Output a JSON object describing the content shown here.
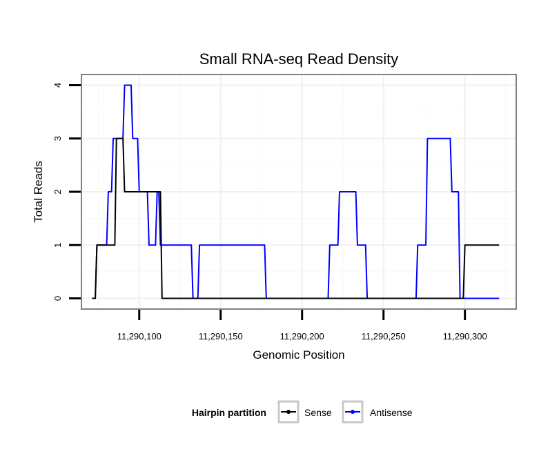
{
  "chart_data": {
    "type": "line",
    "title": "Small RNA-seq Read Density",
    "xlabel": "Genomic Position",
    "ylabel": "Total Reads",
    "xlim": [
      11290064.5,
      11290331.5
    ],
    "ylim": [
      -0.2,
      4.2
    ],
    "x_ticks": [
      11290100,
      11290150,
      11290200,
      11290250,
      11290300
    ],
    "x_tick_labels": [
      "11,290,100",
      "11,290,150",
      "11,290,200",
      "11,290,250",
      "11,290,300"
    ],
    "y_ticks": [
      0,
      1,
      2,
      3,
      4
    ],
    "y_tick_labels": [
      "0",
      "1",
      "2",
      "3",
      "4"
    ],
    "grid": true,
    "legend": {
      "title": "Hairpin partition",
      "position": "bottom",
      "entries": [
        "Sense",
        "Antisense"
      ]
    },
    "series": [
      {
        "name": "Antisense",
        "color": "#0000ff",
        "x": [
          11290071,
          11290073,
          11290074,
          11290080,
          11290081,
          11290083,
          11290084,
          11290087,
          11290088,
          11290090,
          11290091,
          11290095,
          11290096,
          11290099,
          11290100,
          11290105,
          11290106,
          11290110,
          11290111,
          11290112,
          11290113,
          11290132,
          11290133,
          11290136,
          11290137,
          11290177,
          11290178,
          11290216,
          11290217,
          11290222,
          11290223,
          11290233,
          11290234,
          11290239,
          11290240,
          11290270,
          11290271,
          11290276,
          11290277,
          11290291,
          11290292,
          11290296,
          11290297,
          11290321
        ],
        "y": [
          0,
          0,
          1,
          1,
          2,
          2,
          3,
          3,
          3,
          3,
          4,
          4,
          3,
          3,
          2,
          2,
          1,
          1,
          2,
          2,
          1,
          1,
          0,
          0,
          1,
          1,
          0,
          0,
          1,
          1,
          2,
          2,
          1,
          1,
          0,
          0,
          1,
          1,
          3,
          3,
          2,
          2,
          0,
          0
        ]
      },
      {
        "name": "Sense",
        "color": "#000000",
        "x": [
          11290071,
          11290073,
          11290074,
          11290085,
          11290086,
          11290090,
          11290091,
          11290113,
          11290114,
          11290299,
          11290300,
          11290321
        ],
        "y": [
          0,
          0,
          1,
          1,
          3,
          3,
          2,
          2,
          0,
          0,
          1,
          1
        ]
      }
    ]
  }
}
